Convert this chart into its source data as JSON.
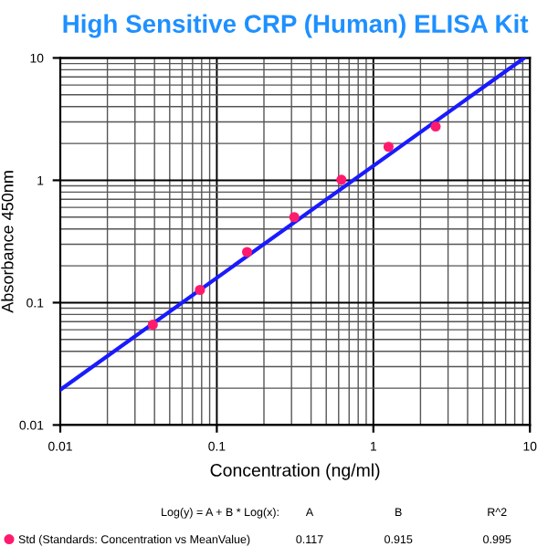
{
  "chart_data": {
    "type": "scatter",
    "title": "High Sensitive CRP (Human) ELISA Kit",
    "xlabel": "Concentration (ng/ml)",
    "ylabel": "Absorbance 450nm",
    "log": "xy",
    "grid": true,
    "legend": "bottom",
    "marker": "circle",
    "xlim": [
      0.01,
      10
    ],
    "ylim": [
      0.01,
      10
    ],
    "xticks": [
      0.01,
      0.1,
      1,
      10
    ],
    "yticks": [
      0.01,
      0.1,
      1,
      10
    ],
    "series": [
      {
        "name": "Std (Standards: Concentration vs MeanValue)",
        "color": "#ff1a6e",
        "x": [
          0.039,
          0.078,
          0.156,
          0.3125,
          0.625,
          1.25,
          2.5
        ],
        "values": [
          0.066,
          0.127,
          0.259,
          0.5,
          1.01,
          1.88,
          2.75
        ]
      },
      {
        "type": "line",
        "color": "#1a1aff",
        "line_style": "solid",
        "marker": "none",
        "x": [
          0.01,
          9.2
        ],
        "values": [
          0.0194,
          10
        ]
      }
    ],
    "annotations": [
      "Log(y) = A + B * Log(x):",
      "A",
      "B",
      "R^2",
      "0.117",
      "0.915",
      "0.995"
    ]
  }
}
